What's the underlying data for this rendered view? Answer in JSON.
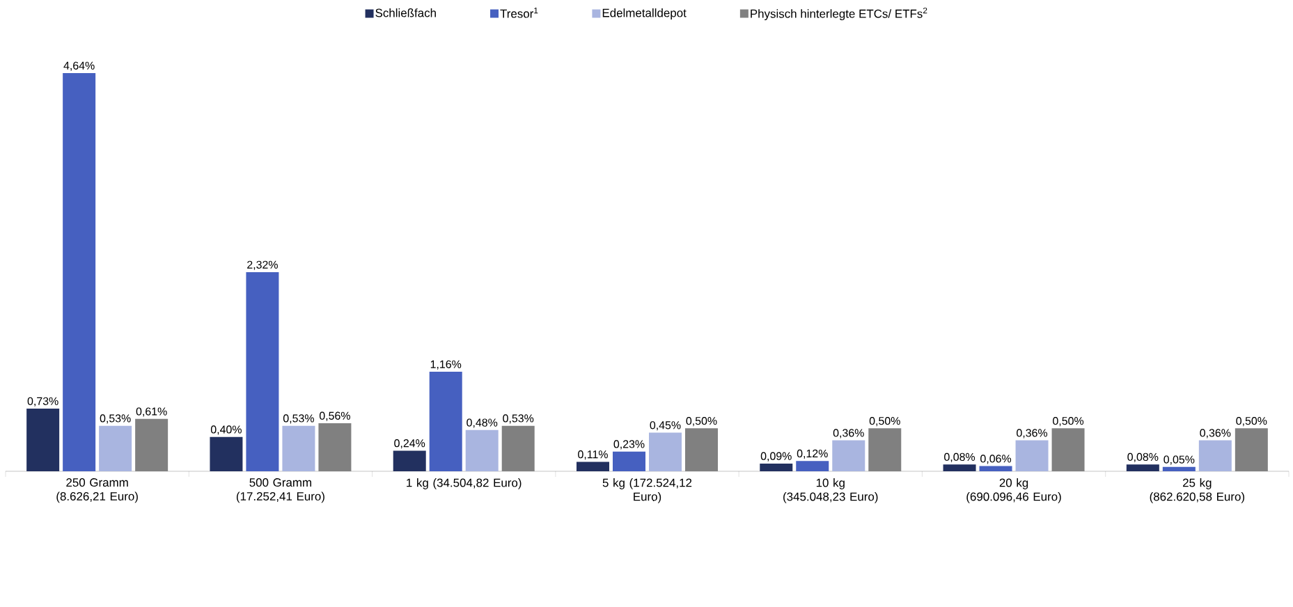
{
  "chart_data": {
    "type": "bar",
    "legend": "top",
    "categories": [
      "250 Gramm (8.626,21 Euro)",
      "500 Gramm (17.252,41 Euro)",
      "1 kg (34.504,82 Euro)",
      "5 kg (172.524,12 Euro)",
      "10 kg (345.048,23 Euro)",
      "20 kg (690.096,46 Euro)",
      "25 kg (862.620,58 Euro)"
    ],
    "series": [
      {
        "name": "Schließfach",
        "color": "#22305f",
        "values": [
          0.73,
          0.4,
          0.24,
          0.11,
          0.09,
          0.08,
          0.08
        ],
        "value_labels": [
          "0,73%",
          "0,40%",
          "0,24%",
          "0,11%",
          "0,09%",
          "0,08%",
          "0,08%"
        ]
      },
      {
        "name": "Tresor$^{1}$",
        "color": "#4660c0",
        "values": [
          4.64,
          2.32,
          1.16,
          0.23,
          0.12,
          0.06,
          0.05
        ],
        "value_labels": [
          "4,64%",
          "2,32%",
          "1,16%",
          "0,23%",
          "0,12%",
          "0,06%",
          "0,05%"
        ]
      },
      {
        "name": "Edelmetalldepot",
        "color": "#a9b5e0",
        "values": [
          0.53,
          0.53,
          0.48,
          0.45,
          0.36,
          0.36,
          0.36
        ],
        "value_labels": [
          "0,53%",
          "0,53%",
          "0,48%",
          "0,45%",
          "0,36%",
          "0,36%",
          "0,36%"
        ]
      },
      {
        "name": "Physisch hinterlegte ETCs/ ETFs$^{2}$",
        "color": "#808080",
        "values": [
          0.61,
          0.56,
          0.53,
          0.5,
          0.5,
          0.5,
          0.5
        ],
        "value_labels": [
          "0,61%",
          "0,56%",
          "0,53%",
          "0,50%",
          "0,50%",
          "0,50%",
          "0,50%"
        ]
      }
    ]
  }
}
